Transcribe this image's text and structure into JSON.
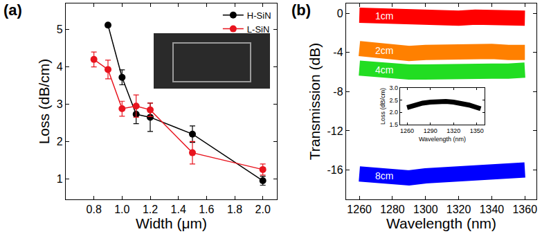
{
  "chart_data": [
    {
      "type": "line",
      "title": "(a)",
      "x_label": "Width (μm)",
      "y_label": "Loss (dB/cm)",
      "x": [
        0.8,
        0.9,
        1.0,
        1.1,
        1.2,
        1.5,
        2.0
      ],
      "series": [
        {
          "name": "H-SiN",
          "color": "#000000",
          "marker": "circle",
          "line_style": "solid",
          "values": [
            null,
            5.12,
            3.72,
            2.73,
            2.65,
            2.2,
            0.95
          ],
          "errors": [
            null,
            0.05,
            0.2,
            0.25,
            0.38,
            0.22,
            0.12
          ]
        },
        {
          "name": "L-SiN",
          "color": "#e8141e",
          "marker": "circle",
          "line_style": "solid",
          "values": [
            4.2,
            3.93,
            2.88,
            2.95,
            2.85,
            1.7,
            1.25
          ],
          "errors": [
            0.2,
            0.25,
            0.2,
            0.3,
            0.18,
            0.3,
            0.15
          ]
        }
      ],
      "xlim": [
        0.6,
        2.1
      ],
      "xticks": [
        0.8,
        {
          "value": 1,
          "label": "1.0"
        },
        1.2,
        1.4,
        1.6,
        1.8,
        {
          "value": 2,
          "label": "2.0"
        }
      ],
      "ylim": [
        0.45,
        5.7
      ],
      "yticks": [
        1,
        2,
        3,
        4,
        5
      ],
      "grid": false,
      "legend": "upper right"
    },
    {
      "type": "line",
      "title": "(b)",
      "x_label": "Wavelength (nm)",
      "y_label": "Transmission (dB)",
      "x": [
        1260,
        1270,
        1280,
        1290,
        1300,
        1310,
        1320,
        1330,
        1340,
        1350,
        1360
      ],
      "series": [
        {
          "name": "1cm",
          "color": "#ff0000",
          "values": [
            -0.2,
            -0.3,
            -0.3,
            -0.4,
            -0.4,
            -0.4,
            -0.5,
            -0.4,
            -0.4,
            -0.5,
            -0.5
          ]
        },
        {
          "name": "2cm",
          "color": "#ff8000",
          "values": [
            -3.6,
            -3.8,
            -4.0,
            -4.1,
            -4.0,
            -3.9,
            -3.8,
            -3.8,
            -3.9,
            -4.0,
            -4.0
          ]
        },
        {
          "name": "4cm",
          "color": "#22dd22",
          "values": [
            -5.6,
            -5.8,
            -5.9,
            -6.0,
            -6.0,
            -5.9,
            -5.8,
            -5.8,
            -5.9,
            -5.9,
            -5.8
          ]
        },
        {
          "name": "8cm",
          "color": "#0000ff",
          "values": [
            -16.4,
            -16.6,
            -16.7,
            -16.8,
            -16.6,
            -16.5,
            -16.4,
            -16.3,
            -16.3,
            -16.2,
            -16.0
          ]
        }
      ],
      "xlim": [
        1252,
        1367
      ],
      "xticks": [
        1260,
        1280,
        1300,
        1320,
        1340,
        1360
      ],
      "ylim": [
        -19,
        1
      ],
      "yticks": [
        0,
        -4,
        -8,
        -12,
        -16
      ],
      "grid": false
    },
    {
      "type": "line",
      "x_label": "Wavelength (nm)",
      "y_label": "Loss (dB/cm)",
      "x": [
        1260,
        1270,
        1280,
        1290,
        1300,
        1310,
        1320,
        1330,
        1340,
        1350,
        1355
      ],
      "series": [
        {
          "color": "#000000",
          "values": [
            2.2,
            2.3,
            2.38,
            2.42,
            2.45,
            2.45,
            2.42,
            2.38,
            2.3,
            2.2,
            2.15
          ]
        }
      ],
      "xlim": [
        1251,
        1360
      ],
      "xticks": [
        1260,
        1290,
        1320,
        1350
      ],
      "ylim": [
        1.5,
        3.0
      ],
      "yticks": [
        1.5,
        {
          "value": 2,
          "label": "2.0"
        },
        2.5,
        {
          "value": 3,
          "label": "3.0"
        }
      ],
      "grid": false
    }
  ]
}
